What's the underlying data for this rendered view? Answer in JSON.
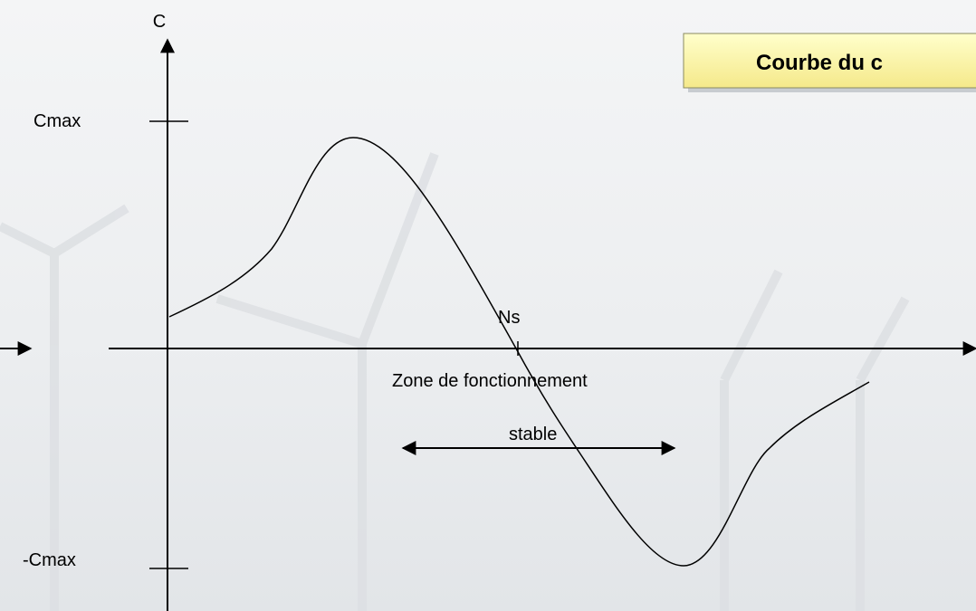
{
  "title": "Courbe du c",
  "axes": {
    "y_label": "C",
    "x_label": "Ns"
  },
  "ticks": {
    "top": "Cmax",
    "bottom": "-Cmax"
  },
  "zone": {
    "line1": "Zone de fonctionnement",
    "line2": "stable"
  }
}
